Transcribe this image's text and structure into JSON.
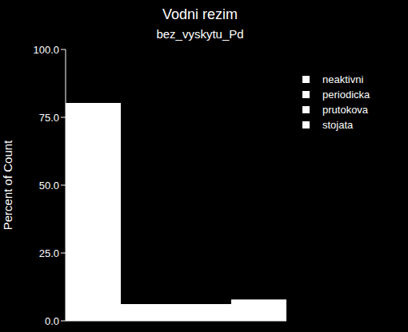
{
  "chart_data": {
    "type": "bar",
    "title": "Vodni rezim",
    "subtitle": "bez_vyskytu_Pd",
    "y_label": "Percent of Count",
    "categories": [
      "neaktivni",
      "periodicka",
      "prutokova",
      "stojata"
    ],
    "values": [
      80.3,
      6.2,
      6.2,
      7.9
    ],
    "colors": [
      "#ffffff",
      "#ffffff",
      "#ffffff",
      "#ffffff"
    ],
    "ylim": [
      0,
      100
    ],
    "yticks": [
      {
        "value": 0,
        "label": "0.0"
      },
      {
        "value": 25,
        "label": "25.0"
      },
      {
        "value": 50,
        "label": "50.0"
      },
      {
        "value": 75,
        "label": "75.0"
      },
      {
        "value": 100,
        "label": "100.0"
      }
    ],
    "legend": "right",
    "tick_labels": "y"
  }
}
